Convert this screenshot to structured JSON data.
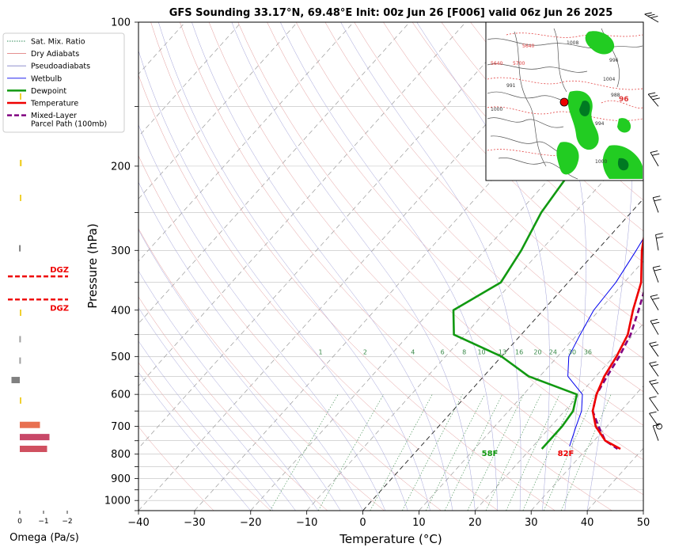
{
  "chart_data": {
    "type": "line",
    "title": "GFS Sounding 33.17°N, 69.48°E Init: 00z Jun 26 [F006] valid 06z Jun 26 2025",
    "xlabel": "Temperature (°C)",
    "ylabel": "Pressure (hPa)",
    "xlim": [
      -40,
      50
    ],
    "ylim": [
      1050,
      100
    ],
    "y_scale": "log",
    "x_ticks": [
      -40,
      -30,
      -20,
      -10,
      0,
      10,
      20,
      30,
      40,
      50
    ],
    "y_ticks": [
      100,
      200,
      300,
      400,
      500,
      600,
      700,
      800,
      900,
      1000
    ],
    "grid": true,
    "legend_position": "upper-left",
    "legend": [
      {
        "label": "Sat. Mix. Ratio",
        "color": "#2e8b57",
        "style": "dotted"
      },
      {
        "label": "Dry Adiabats",
        "color": "#e08080",
        "style": "solid"
      },
      {
        "label": "Pseudoadiabats",
        "color": "#8080c8",
        "style": "solid"
      },
      {
        "label": "Wetbulb",
        "color": "#0000ee",
        "style": "solid"
      },
      {
        "label": "Dewpoint",
        "color": "#119911",
        "style": "solid"
      },
      {
        "label": "Temperature",
        "color": "#ee0000",
        "style": "solid"
      },
      {
        "label": "Mixed-Layer",
        "label2": "Parcel Path (100mb)",
        "color": "#800080",
        "style": "dashed"
      }
    ],
    "series": [
      {
        "name": "Temperature",
        "color": "#ee0000",
        "points": [
          [
            -13,
            100
          ],
          [
            -11,
            120
          ],
          [
            -8,
            150
          ],
          [
            -4,
            180
          ],
          [
            -1,
            200
          ],
          [
            3,
            250
          ],
          [
            8,
            300
          ],
          [
            13,
            350
          ],
          [
            16,
            400
          ],
          [
            19,
            450
          ],
          [
            20.5,
            500
          ],
          [
            21.5,
            550
          ],
          [
            23,
            600
          ],
          [
            25,
            650
          ],
          [
            28,
            700
          ],
          [
            32,
            750
          ],
          [
            36,
            780
          ]
        ]
      },
      {
        "name": "Dewpoint",
        "color": "#119911",
        "points": [
          [
            -18,
            100
          ],
          [
            -15.5,
            130
          ],
          [
            -14,
            150
          ],
          [
            -16,
            180
          ],
          [
            -17.5,
            200
          ],
          [
            -16,
            250
          ],
          [
            -13.5,
            300
          ],
          [
            -12,
            350
          ],
          [
            -16,
            400
          ],
          [
            -12,
            450
          ],
          [
            0,
            500
          ],
          [
            8,
            550
          ],
          [
            19.5,
            600
          ],
          [
            21.5,
            650
          ],
          [
            22,
            700
          ],
          [
            22,
            780
          ]
        ]
      },
      {
        "name": "Wetbulb",
        "color": "#0000ee",
        "points": [
          [
            -3,
            180
          ],
          [
            1,
            200
          ],
          [
            5,
            250
          ],
          [
            7,
            300
          ],
          [
            8.5,
            350
          ],
          [
            9,
            400
          ],
          [
            10.5,
            450
          ],
          [
            12,
            500
          ],
          [
            15,
            550
          ],
          [
            20.5,
            600
          ],
          [
            23,
            650
          ],
          [
            24.5,
            700
          ],
          [
            26.5,
            770
          ]
        ]
      },
      {
        "name": "Mixed-Layer Parcel Path (100mb)",
        "color": "#800080",
        "points": [
          [
            -17,
            100
          ],
          [
            -14,
            120
          ],
          [
            -9,
            150
          ],
          [
            -5,
            180
          ],
          [
            -1,
            200
          ],
          [
            5,
            250
          ],
          [
            10,
            300
          ],
          [
            14,
            350
          ],
          [
            17,
            400
          ],
          [
            19.5,
            450
          ],
          [
            21,
            500
          ],
          [
            22,
            550
          ],
          [
            23,
            600
          ],
          [
            25,
            650
          ],
          [
            28.5,
            700
          ],
          [
            32,
            750
          ],
          [
            35.5,
            780
          ]
        ]
      }
    ],
    "sat_mix_ratio_labels": [
      "1",
      "2",
      "4",
      "6",
      "8",
      "10",
      "13",
      "16",
      "20",
      "24",
      "30",
      "36"
    ],
    "sat_mix_ratio_values": [
      1,
      2,
      4,
      6,
      8,
      10,
      13,
      16,
      20,
      24,
      30,
      36
    ],
    "surface_labels": {
      "dewpoint": "58F",
      "temperature": "82F"
    },
    "omega": {
      "xlabel": "Omega (Pa/s)",
      "tick_labels": [
        "0",
        "−1",
        "−2"
      ],
      "ticks": [
        0,
        -1,
        -2
      ],
      "dgz_label": "DGZ",
      "dgz_pressures": [
        340,
        380
      ],
      "bars": [
        {
          "p": 780,
          "value": -1.15,
          "color": "#d05060"
        },
        {
          "p": 737,
          "value": -1.25,
          "color": "#c84868"
        },
        {
          "p": 695,
          "value": -0.85,
          "color": "#e87050"
        },
        {
          "p": 618,
          "value": -0.05,
          "color": "#f0d030"
        },
        {
          "p": 560,
          "value": 0.35,
          "color": "#808080"
        },
        {
          "p": 510,
          "value": 0.02,
          "color": "#a0a0a0"
        },
        {
          "p": 460,
          "value": 0.02,
          "color": "#a0a0a0"
        },
        {
          "p": 405,
          "value": -0.02,
          "color": "#f0d030"
        },
        {
          "p": 297,
          "value": 0.03,
          "color": "#808080"
        },
        {
          "p": 233,
          "value": -0.05,
          "color": "#f0d030"
        },
        {
          "p": 197,
          "value": -0.08,
          "color": "#f0d030"
        },
        {
          "p": 143,
          "value": -0.05,
          "color": "#f0d030"
        }
      ]
    },
    "wind_barbs_pressures": [
      100,
      150,
      200,
      250,
      300,
      350,
      400,
      450,
      500,
      550,
      600,
      650,
      700,
      750
    ]
  },
  "inset_map": {
    "contour_labels": [
      "5640",
      "5640",
      "5700",
      "1008",
      "1004",
      "1000",
      "996",
      "994",
      "988",
      "991",
      "96",
      "1000"
    ],
    "marker_color": "#ee0000"
  }
}
